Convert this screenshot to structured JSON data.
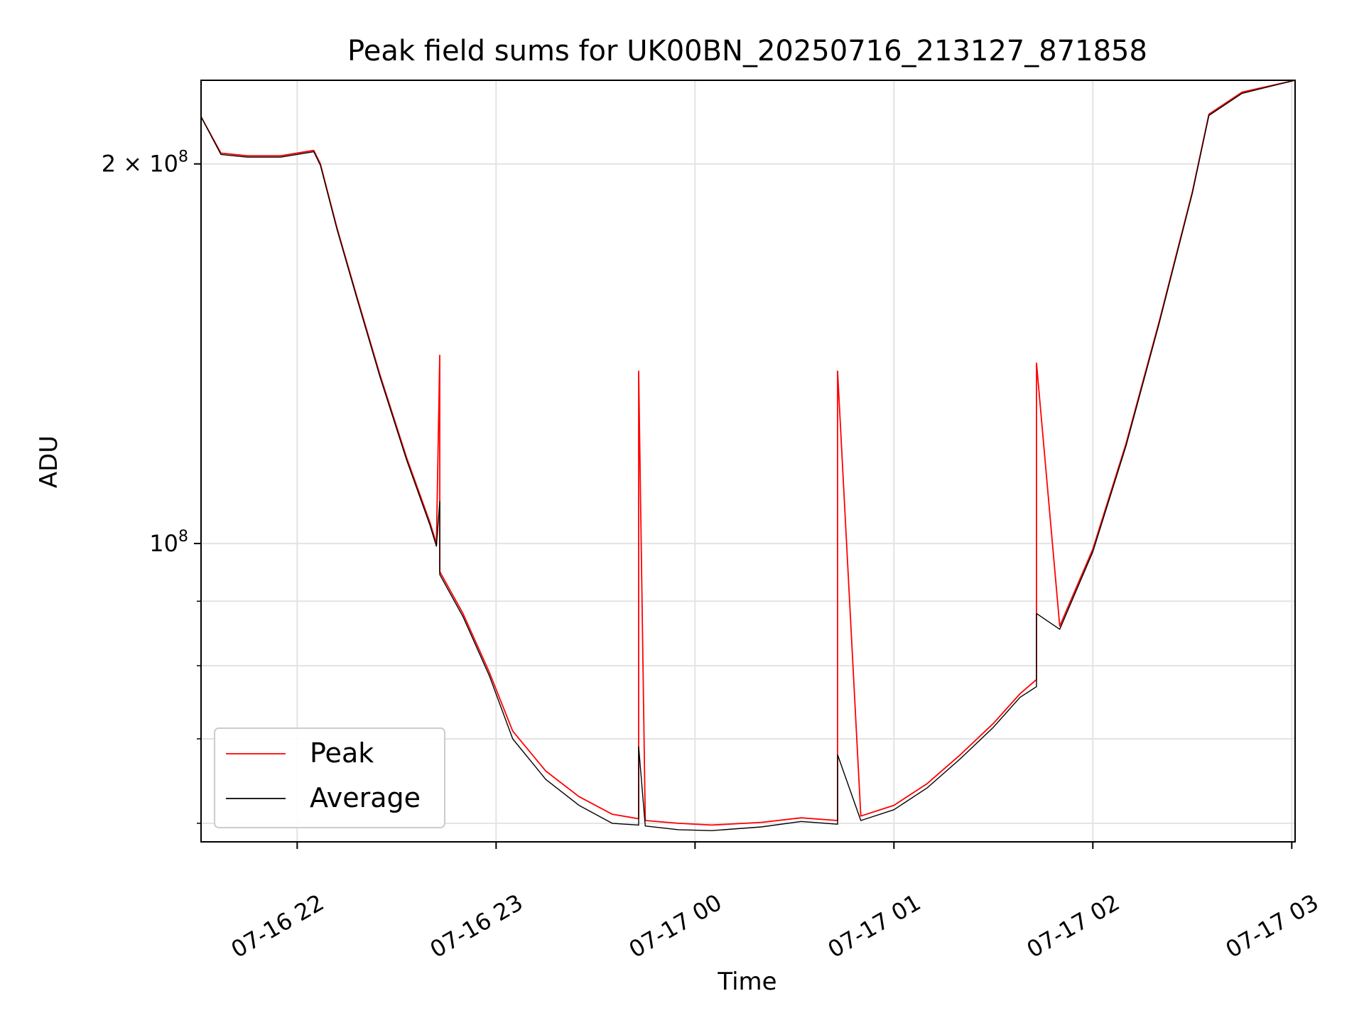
{
  "chart_data": {
    "type": "line",
    "title": "Peak field sums for UK00BN_20250716_213127_871858",
    "xlabel": "Time",
    "ylabel": "ADU",
    "y_scale": "log",
    "xlim": [
      "2025-07-16T21:31",
      "2025-07-17T03:01"
    ],
    "ylim": [
      58000000,
      233000000
    ],
    "grid": true,
    "legend_location": "lower left",
    "x_ticks": [
      {
        "value": "2025-07-16T22:00",
        "label": "07-16 22"
      },
      {
        "value": "2025-07-16T23:00",
        "label": "07-16 23"
      },
      {
        "value": "2025-07-17T00:00",
        "label": "07-17 00"
      },
      {
        "value": "2025-07-17T01:00",
        "label": "07-17 01"
      },
      {
        "value": "2025-07-17T02:00",
        "label": "07-17 02"
      },
      {
        "value": "2025-07-17T03:00",
        "label": "07-17 03"
      }
    ],
    "y_ticks": [
      {
        "value": 200000000,
        "base": "2 × 10",
        "exp": "8"
      },
      {
        "value": 100000000,
        "base": "10",
        "exp": "8"
      }
    ],
    "y_minor_ticks": [
      60000000,
      70000000,
      80000000,
      90000000
    ],
    "series": [
      {
        "name": "Peak",
        "color": "#ff0000",
        "x": [
          "2025-07-16T21:31",
          "2025-07-16T21:37",
          "2025-07-16T21:45",
          "2025-07-16T21:55",
          "2025-07-16T22:05",
          "2025-07-16T22:07",
          "2025-07-16T22:12",
          "2025-07-16T22:18",
          "2025-07-16T22:25",
          "2025-07-16T22:33",
          "2025-07-16T22:40",
          "2025-07-16T22:42",
          "2025-07-16T22:43",
          "2025-07-16T22:43",
          "2025-07-16T22:50",
          "2025-07-16T22:58",
          "2025-07-16T23:05",
          "2025-07-16T23:15",
          "2025-07-16T23:25",
          "2025-07-16T23:35",
          "2025-07-16T23:43",
          "2025-07-16T23:43",
          "2025-07-16T23:45",
          "2025-07-16T23:55",
          "2025-07-17T00:05",
          "2025-07-17T00:20",
          "2025-07-17T00:32",
          "2025-07-17T00:43",
          "2025-07-17T00:43",
          "2025-07-17T00:50",
          "2025-07-17T01:00",
          "2025-07-17T01:10",
          "2025-07-17T01:20",
          "2025-07-17T01:30",
          "2025-07-17T01:38",
          "2025-07-17T01:43",
          "2025-07-17T01:43",
          "2025-07-17T01:50",
          "2025-07-17T02:00",
          "2025-07-17T02:10",
          "2025-07-17T02:20",
          "2025-07-17T02:30",
          "2025-07-17T02:35",
          "2025-07-17T02:45",
          "2025-07-17T03:01"
        ],
        "y": [
          218000000,
          204000000,
          203000000,
          203000000,
          205000000,
          200000000,
          178000000,
          157000000,
          136000000,
          117000000,
          104000000,
          100000000,
          141000000,
          95000000,
          88000000,
          79000000,
          71000000,
          66000000,
          63000000,
          61000000,
          60500000,
          137000000,
          60300000,
          60000000,
          59800000,
          60100000,
          60600000,
          60300000,
          137000000,
          60800000,
          62000000,
          64500000,
          68000000,
          72000000,
          76000000,
          78000000,
          139000000,
          86000000,
          99000000,
          120000000,
          150000000,
          190000000,
          219000000,
          228000000,
          233000000
        ]
      },
      {
        "name": "Average",
        "color": "#000000",
        "x": [
          "2025-07-16T21:31",
          "2025-07-16T21:37",
          "2025-07-16T21:45",
          "2025-07-16T21:55",
          "2025-07-16T22:05",
          "2025-07-16T22:07",
          "2025-07-16T22:12",
          "2025-07-16T22:18",
          "2025-07-16T22:25",
          "2025-07-16T22:33",
          "2025-07-16T22:40",
          "2025-07-16T22:42",
          "2025-07-16T22:43",
          "2025-07-16T22:43",
          "2025-07-16T22:50",
          "2025-07-16T22:58",
          "2025-07-16T23:05",
          "2025-07-16T23:15",
          "2025-07-16T23:25",
          "2025-07-16T23:35",
          "2025-07-16T23:43",
          "2025-07-16T23:43",
          "2025-07-16T23:45",
          "2025-07-16T23:55",
          "2025-07-17T00:05",
          "2025-07-17T00:20",
          "2025-07-17T00:32",
          "2025-07-17T00:43",
          "2025-07-17T00:43",
          "2025-07-17T00:50",
          "2025-07-17T01:00",
          "2025-07-17T01:10",
          "2025-07-17T01:20",
          "2025-07-17T01:30",
          "2025-07-17T01:38",
          "2025-07-17T01:43",
          "2025-07-17T01:43",
          "2025-07-17T01:50",
          "2025-07-17T02:00",
          "2025-07-17T02:10",
          "2025-07-17T02:20",
          "2025-07-17T02:30",
          "2025-07-17T02:35",
          "2025-07-17T02:45",
          "2025-07-17T03:01"
        ],
        "y": [
          218000000,
          203500000,
          202500000,
          202500000,
          204500000,
          199500000,
          177500000,
          156500000,
          135500000,
          116500000,
          103500000,
          99500000,
          108000000,
          94500000,
          87500000,
          78500000,
          70000000,
          65000000,
          62000000,
          60000000,
          59800000,
          69000000,
          59700000,
          59300000,
          59200000,
          59600000,
          60200000,
          59900000,
          68000000,
          60300000,
          61500000,
          64000000,
          67500000,
          71500000,
          75500000,
          77000000,
          88000000,
          85500000,
          98500000,
          119500000,
          149500000,
          189500000,
          218500000,
          227500000,
          233000000
        ]
      }
    ]
  }
}
